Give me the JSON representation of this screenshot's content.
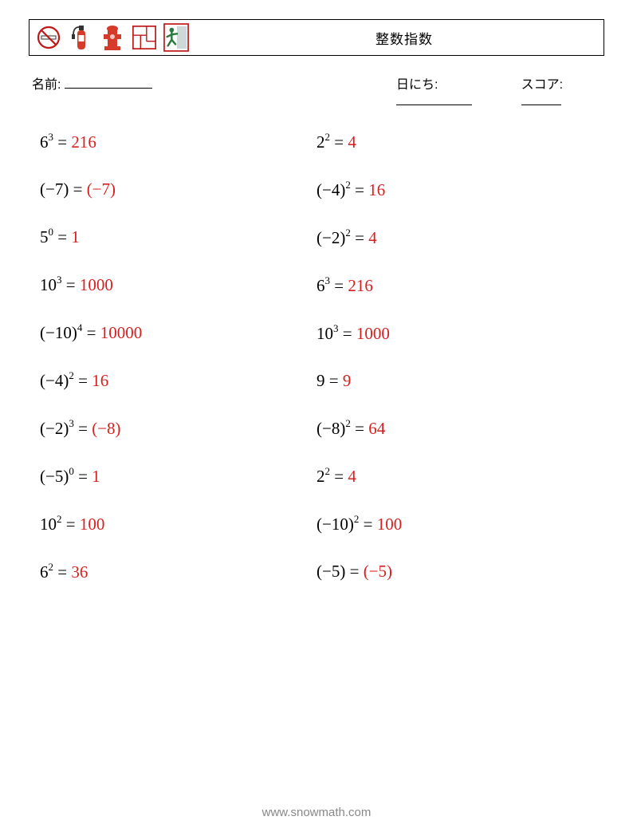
{
  "header": {
    "title": "整数指数"
  },
  "meta": {
    "name_label": "名前:",
    "date_label": "日にち:",
    "score_label": "スコア:",
    "name_blank_width": 110,
    "date_blank_width": 95,
    "score_blank_width": 50
  },
  "colors": {
    "answer": "#d81f1f",
    "text": "#000000",
    "footer": "#888888",
    "no_smoke_stroke": "#c01818",
    "extinguisher": "#d53a2a",
    "hydrant": "#d53a2a",
    "floorplan_stroke": "#c01818",
    "exit_person": "#2a7a3f",
    "exit_border": "#c01818"
  },
  "columns": [
    [
      {
        "base": "6",
        "exp": "3",
        "answer": "216",
        "neg_answer": false
      },
      {
        "base": "(−7)",
        "exp": "",
        "answer": "(−7)",
        "neg_answer": true
      },
      {
        "base": "5",
        "exp": "0",
        "answer": "1",
        "neg_answer": false
      },
      {
        "base": "10",
        "exp": "3",
        "answer": "1000",
        "neg_answer": false
      },
      {
        "base": "(−10)",
        "exp": "4",
        "answer": "10000",
        "neg_answer": false
      },
      {
        "base": "(−4)",
        "exp": "2",
        "answer": "16",
        "neg_answer": false
      },
      {
        "base": "(−2)",
        "exp": "3",
        "answer": "(−8)",
        "neg_answer": true
      },
      {
        "base": "(−5)",
        "exp": "0",
        "answer": "1",
        "neg_answer": false
      },
      {
        "base": "10",
        "exp": "2",
        "answer": "100",
        "neg_answer": false
      },
      {
        "base": "6",
        "exp": "2",
        "answer": "36",
        "neg_answer": false
      }
    ],
    [
      {
        "base": "2",
        "exp": "2",
        "answer": "4",
        "neg_answer": false
      },
      {
        "base": "(−4)",
        "exp": "2",
        "answer": "16",
        "neg_answer": false
      },
      {
        "base": "(−2)",
        "exp": "2",
        "answer": "4",
        "neg_answer": false
      },
      {
        "base": "6",
        "exp": "3",
        "answer": "216",
        "neg_answer": false
      },
      {
        "base": "10",
        "exp": "3",
        "answer": "1000",
        "neg_answer": false
      },
      {
        "base": "9",
        "exp": "",
        "answer": "9",
        "neg_answer": false
      },
      {
        "base": "(−8)",
        "exp": "2",
        "answer": "64",
        "neg_answer": false
      },
      {
        "base": "2",
        "exp": "2",
        "answer": "4",
        "neg_answer": false
      },
      {
        "base": "(−10)",
        "exp": "2",
        "answer": "100",
        "neg_answer": false
      },
      {
        "base": "(−5)",
        "exp": "",
        "answer": "(−5)",
        "neg_answer": true
      }
    ]
  ],
  "footer": "www.snowmath.com"
}
